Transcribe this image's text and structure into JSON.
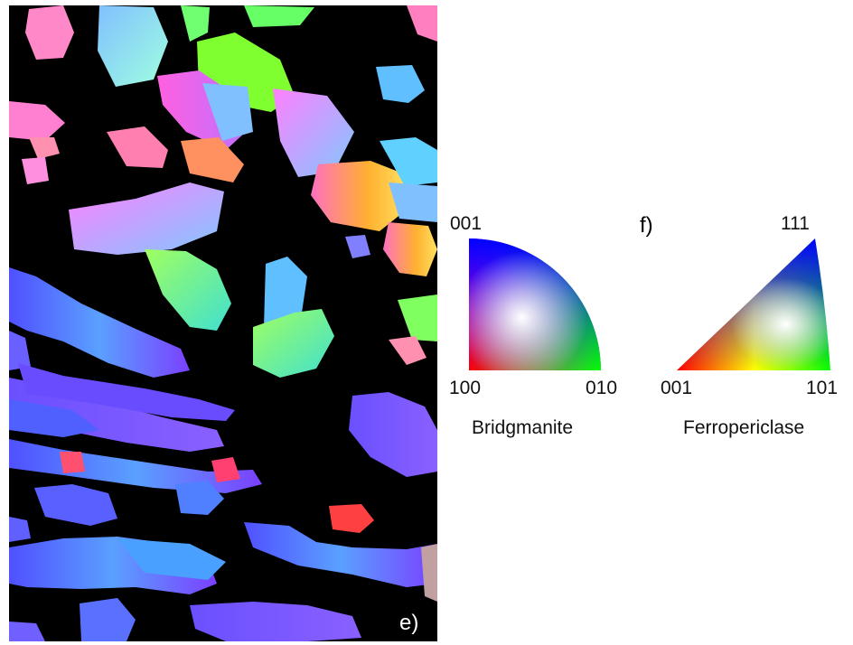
{
  "panels": {
    "map_label": "e)",
    "key_panel_label": "f)"
  },
  "keys": {
    "bridgmanite": {
      "name": "Bridgmanite",
      "top": "001",
      "bottom_left": "100",
      "bottom_right": "010"
    },
    "ferropericlase": {
      "name": "Ferropericlase",
      "top": "111",
      "bottom_left": "001",
      "bottom_right": "101"
    }
  },
  "colors": {
    "background": "#000000",
    "red": "#ff0000",
    "green": "#00ff00",
    "blue": "#0000ff"
  }
}
